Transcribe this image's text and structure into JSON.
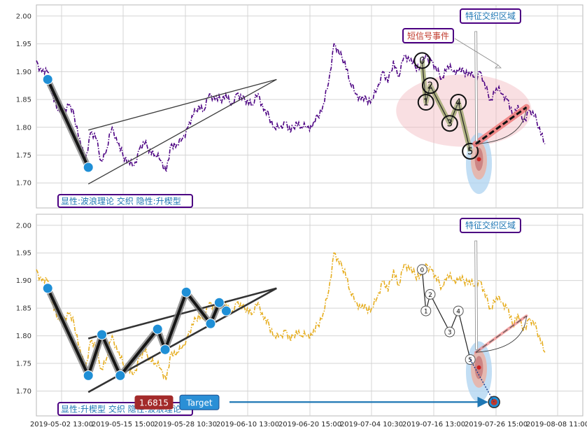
{
  "chart_data": {
    "type": "line",
    "x_tick_labels": [
      "2019-05-02 13:00",
      "2019-05-15 15:00",
      "2019-05-28 10:30",
      "2019-06-10 13:00",
      "2019-06-20 15:00",
      "2019-07-04 10:30",
      "2019-07-16 13:00",
      "2019-07-26 15:00",
      "2019-08-08 11:00"
    ],
    "y_ticks": [
      1.7,
      1.75,
      1.8,
      1.85,
      1.9,
      1.95,
      2.0
    ],
    "y_tick_labels": [
      "1.70",
      "1.75",
      "1.80",
      "1.85",
      "1.90",
      "1.95",
      "2.00"
    ],
    "ylim": [
      1.655,
      2.02
    ],
    "x_range": [
      0,
      101
    ],
    "price_series": [
      [
        0,
        1.92
      ],
      [
        1,
        1.9
      ],
      [
        2,
        1.9
      ],
      [
        3,
        1.86
      ],
      [
        4,
        1.83
      ],
      [
        5,
        1.83
      ],
      [
        6,
        1.84
      ],
      [
        7,
        1.82
      ],
      [
        8,
        1.78
      ],
      [
        9,
        1.74
      ],
      [
        10,
        1.79
      ],
      [
        11,
        1.78
      ],
      [
        12,
        1.74
      ],
      [
        13,
        1.76
      ],
      [
        14,
        1.8
      ],
      [
        15,
        1.77
      ],
      [
        16,
        1.75
      ],
      [
        17,
        1.74
      ],
      [
        18,
        1.73
      ],
      [
        19,
        1.76
      ],
      [
        20,
        1.77
      ],
      [
        21,
        1.76
      ],
      [
        22,
        1.75
      ],
      [
        23,
        1.74
      ],
      [
        24,
        1.72
      ],
      [
        25,
        1.77
      ],
      [
        26,
        1.77
      ],
      [
        27,
        1.78
      ],
      [
        28,
        1.8
      ],
      [
        29,
        1.82
      ],
      [
        30,
        1.84
      ],
      [
        31,
        1.83
      ],
      [
        32,
        1.86
      ],
      [
        33,
        1.85
      ],
      [
        34,
        1.85
      ],
      [
        35,
        1.86
      ],
      [
        36,
        1.84
      ],
      [
        37,
        1.86
      ],
      [
        38,
        1.85
      ],
      [
        39,
        1.85
      ],
      [
        40,
        1.84
      ],
      [
        41,
        1.86
      ],
      [
        42,
        1.83
      ],
      [
        43,
        1.82
      ],
      [
        44,
        1.8
      ],
      [
        45,
        1.8
      ],
      [
        46,
        1.81
      ],
      [
        47,
        1.79
      ],
      [
        48,
        1.81
      ],
      [
        49,
        1.8
      ],
      [
        50,
        1.8
      ],
      [
        51,
        1.8
      ],
      [
        52,
        1.82
      ],
      [
        53,
        1.84
      ],
      [
        54,
        1.88
      ],
      [
        55,
        1.95
      ],
      [
        56,
        1.93
      ],
      [
        57,
        1.92
      ],
      [
        58,
        1.88
      ],
      [
        59,
        1.86
      ],
      [
        60,
        1.85
      ],
      [
        61,
        1.85
      ],
      [
        62,
        1.85
      ],
      [
        63,
        1.87
      ],
      [
        64,
        1.9
      ],
      [
        65,
        1.88
      ],
      [
        66,
        1.92
      ],
      [
        67,
        1.89
      ],
      [
        68,
        1.93
      ],
      [
        69,
        1.92
      ],
      [
        70,
        1.91
      ],
      [
        71,
        1.91
      ],
      [
        72,
        1.93
      ],
      [
        73,
        1.92
      ],
      [
        74,
        1.9
      ],
      [
        75,
        1.89
      ],
      [
        76,
        1.91
      ],
      [
        77,
        1.9
      ],
      [
        78,
        1.9
      ],
      [
        79,
        1.9
      ],
      [
        80,
        1.9
      ],
      [
        81,
        1.89
      ],
      [
        82,
        1.9
      ],
      [
        83,
        1.87
      ],
      [
        84,
        1.85
      ],
      [
        85,
        1.87
      ],
      [
        86,
        1.86
      ],
      [
        87,
        1.85
      ],
      [
        88,
        1.82
      ],
      [
        89,
        1.84
      ],
      [
        90,
        1.81
      ],
      [
        91,
        1.83
      ],
      [
        92,
        1.82
      ],
      [
        93,
        1.8
      ],
      [
        94,
        1.77
      ]
    ],
    "panels": [
      {
        "label": "显性:波浪理论 交织 隐性:升楔型",
        "series_color": "#4b0082",
        "wave_points": [
          [
            2.1,
            1.886
          ],
          [
            9.6,
            1.728
          ]
        ],
        "wedge_lines": [
          [
            [
              9.6,
              1.795
            ],
            [
              44.4,
              1.886
            ]
          ],
          [
            [
              9.6,
              1.698
            ],
            [
              44.4,
              1.886
            ]
          ]
        ],
        "wave_labels": [
          "0",
          "1",
          "2",
          "3",
          "4",
          "5"
        ],
        "wave_label_points": [
          [
            71.3,
            1.92
          ],
          [
            72.0,
            1.845
          ],
          [
            72.8,
            1.875
          ],
          [
            76.4,
            1.807
          ],
          [
            78.0,
            1.845
          ],
          [
            80.2,
            1.757
          ]
        ],
        "wave_label_style": "large",
        "zone_tag": "特征交织区域",
        "signal_tag": "短信号事件"
      },
      {
        "label": "显性:升楔型 交织 隐性:波浪理论",
        "series_color": "#e6ad1e",
        "wave_points": [
          [
            2.1,
            1.886
          ],
          [
            9.6,
            1.728
          ],
          [
            12.1,
            1.802
          ],
          [
            15.5,
            1.728
          ],
          [
            22.4,
            1.812
          ],
          [
            23.8,
            1.775
          ],
          [
            27.7,
            1.879
          ],
          [
            32.2,
            1.822
          ],
          [
            33.8,
            1.86
          ],
          [
            35.1,
            1.845
          ]
        ],
        "wedge_lines": [
          [
            [
              9.6,
              1.795
            ],
            [
              44.4,
              1.886
            ]
          ],
          [
            [
              9.6,
              1.698
            ],
            [
              44.4,
              1.886
            ]
          ]
        ],
        "wave_labels": [
          "0",
          "1",
          "2",
          "3",
          "4",
          "5"
        ],
        "wave_label_points": [
          [
            71.3,
            1.92
          ],
          [
            72.0,
            1.845
          ],
          [
            72.8,
            1.875
          ],
          [
            76.4,
            1.807
          ],
          [
            78.0,
            1.845
          ],
          [
            80.2,
            1.757
          ]
        ],
        "wave_label_style": "small",
        "zone_tag": "特征交织区域",
        "price_tag": "1.6815",
        "target_tag": "Target",
        "target_point": [
          84.6,
          1.68
        ]
      }
    ],
    "projection": {
      "start": [
        81.2,
        1.77
      ],
      "end": [
        90.6,
        1.836
      ]
    },
    "signal_ellipse": {
      "center": [
        81.8,
        1.735
      ],
      "rx": 2.4,
      "ry": 0.055
    },
    "zone_ellipse": {
      "center": [
        79.0,
        1.83
      ],
      "rx": 12.5,
      "ry": 0.065
    }
  }
}
